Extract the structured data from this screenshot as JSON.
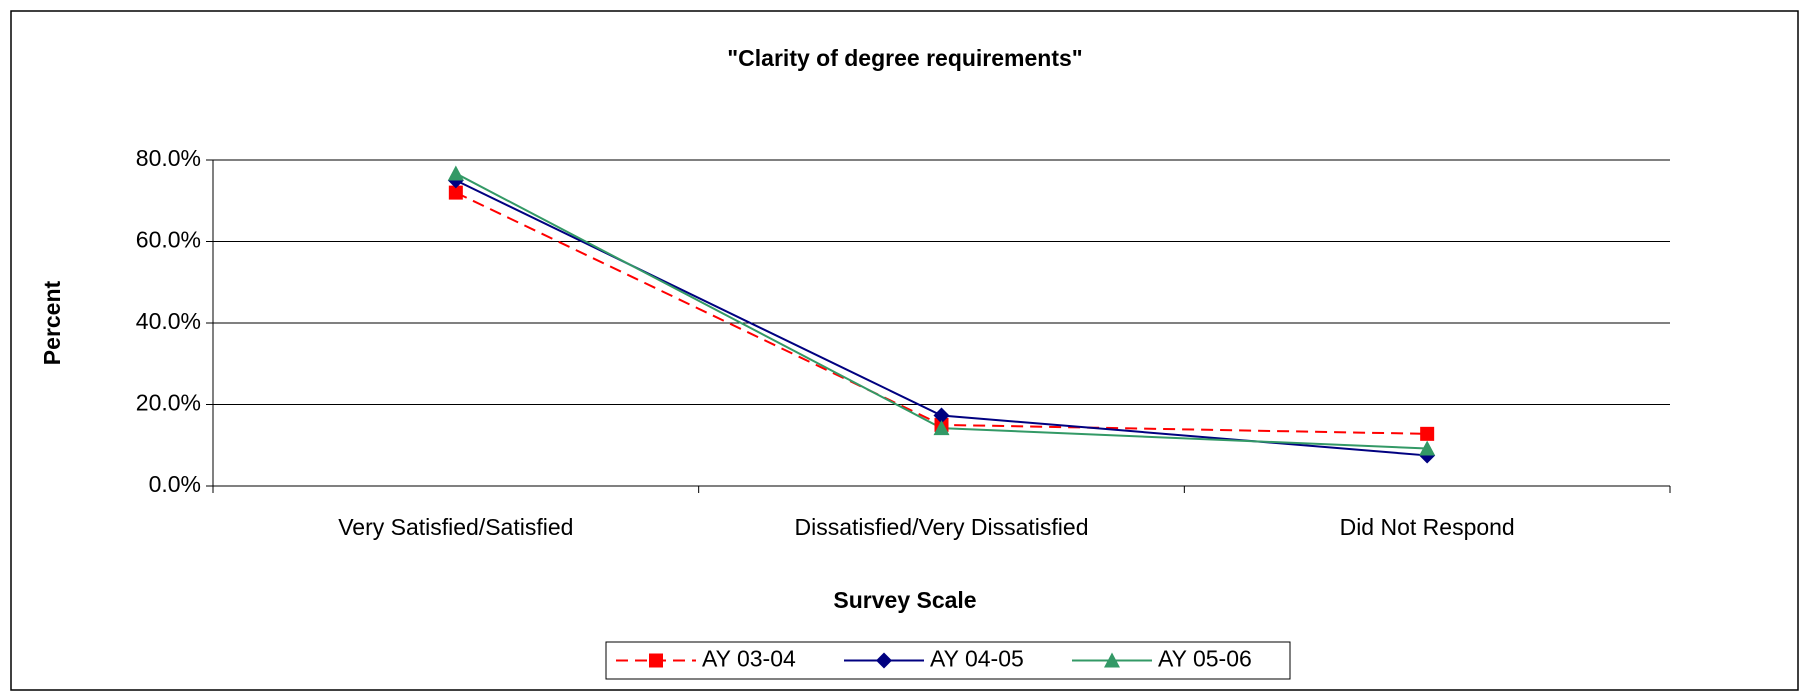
{
  "chart_data": {
    "type": "line",
    "title": "\"Clarity of degree requirements\"",
    "xlabel": "Survey Scale",
    "ylabel": "Percent",
    "categories": [
      "Very Satisfied/Satisfied",
      "Dissatisfied/Very Dissatisfied",
      "Did Not Respond"
    ],
    "series": [
      {
        "name": "AY 03-04",
        "color": "#ff0000",
        "marker": "square",
        "dash": true,
        "values": [
          72.0,
          15.0,
          12.8
        ]
      },
      {
        "name": "AY 04-05",
        "color": "#000080",
        "marker": "diamond",
        "dash": false,
        "values": [
          75.0,
          17.3,
          7.5
        ]
      },
      {
        "name": "AY 05-06",
        "color": "#339966",
        "marker": "triangle",
        "dash": false,
        "values": [
          76.7,
          14.2,
          9.2
        ]
      }
    ],
    "ylim": [
      0,
      80
    ],
    "yticks": [
      {
        "value": 0,
        "label": "0.0%"
      },
      {
        "value": 20,
        "label": "20.0%"
      },
      {
        "value": 40,
        "label": "40.0%"
      },
      {
        "value": 60,
        "label": "60.0%"
      },
      {
        "value": 80,
        "label": "80.0%"
      }
    ],
    "grid": true,
    "legend": "bottom"
  }
}
